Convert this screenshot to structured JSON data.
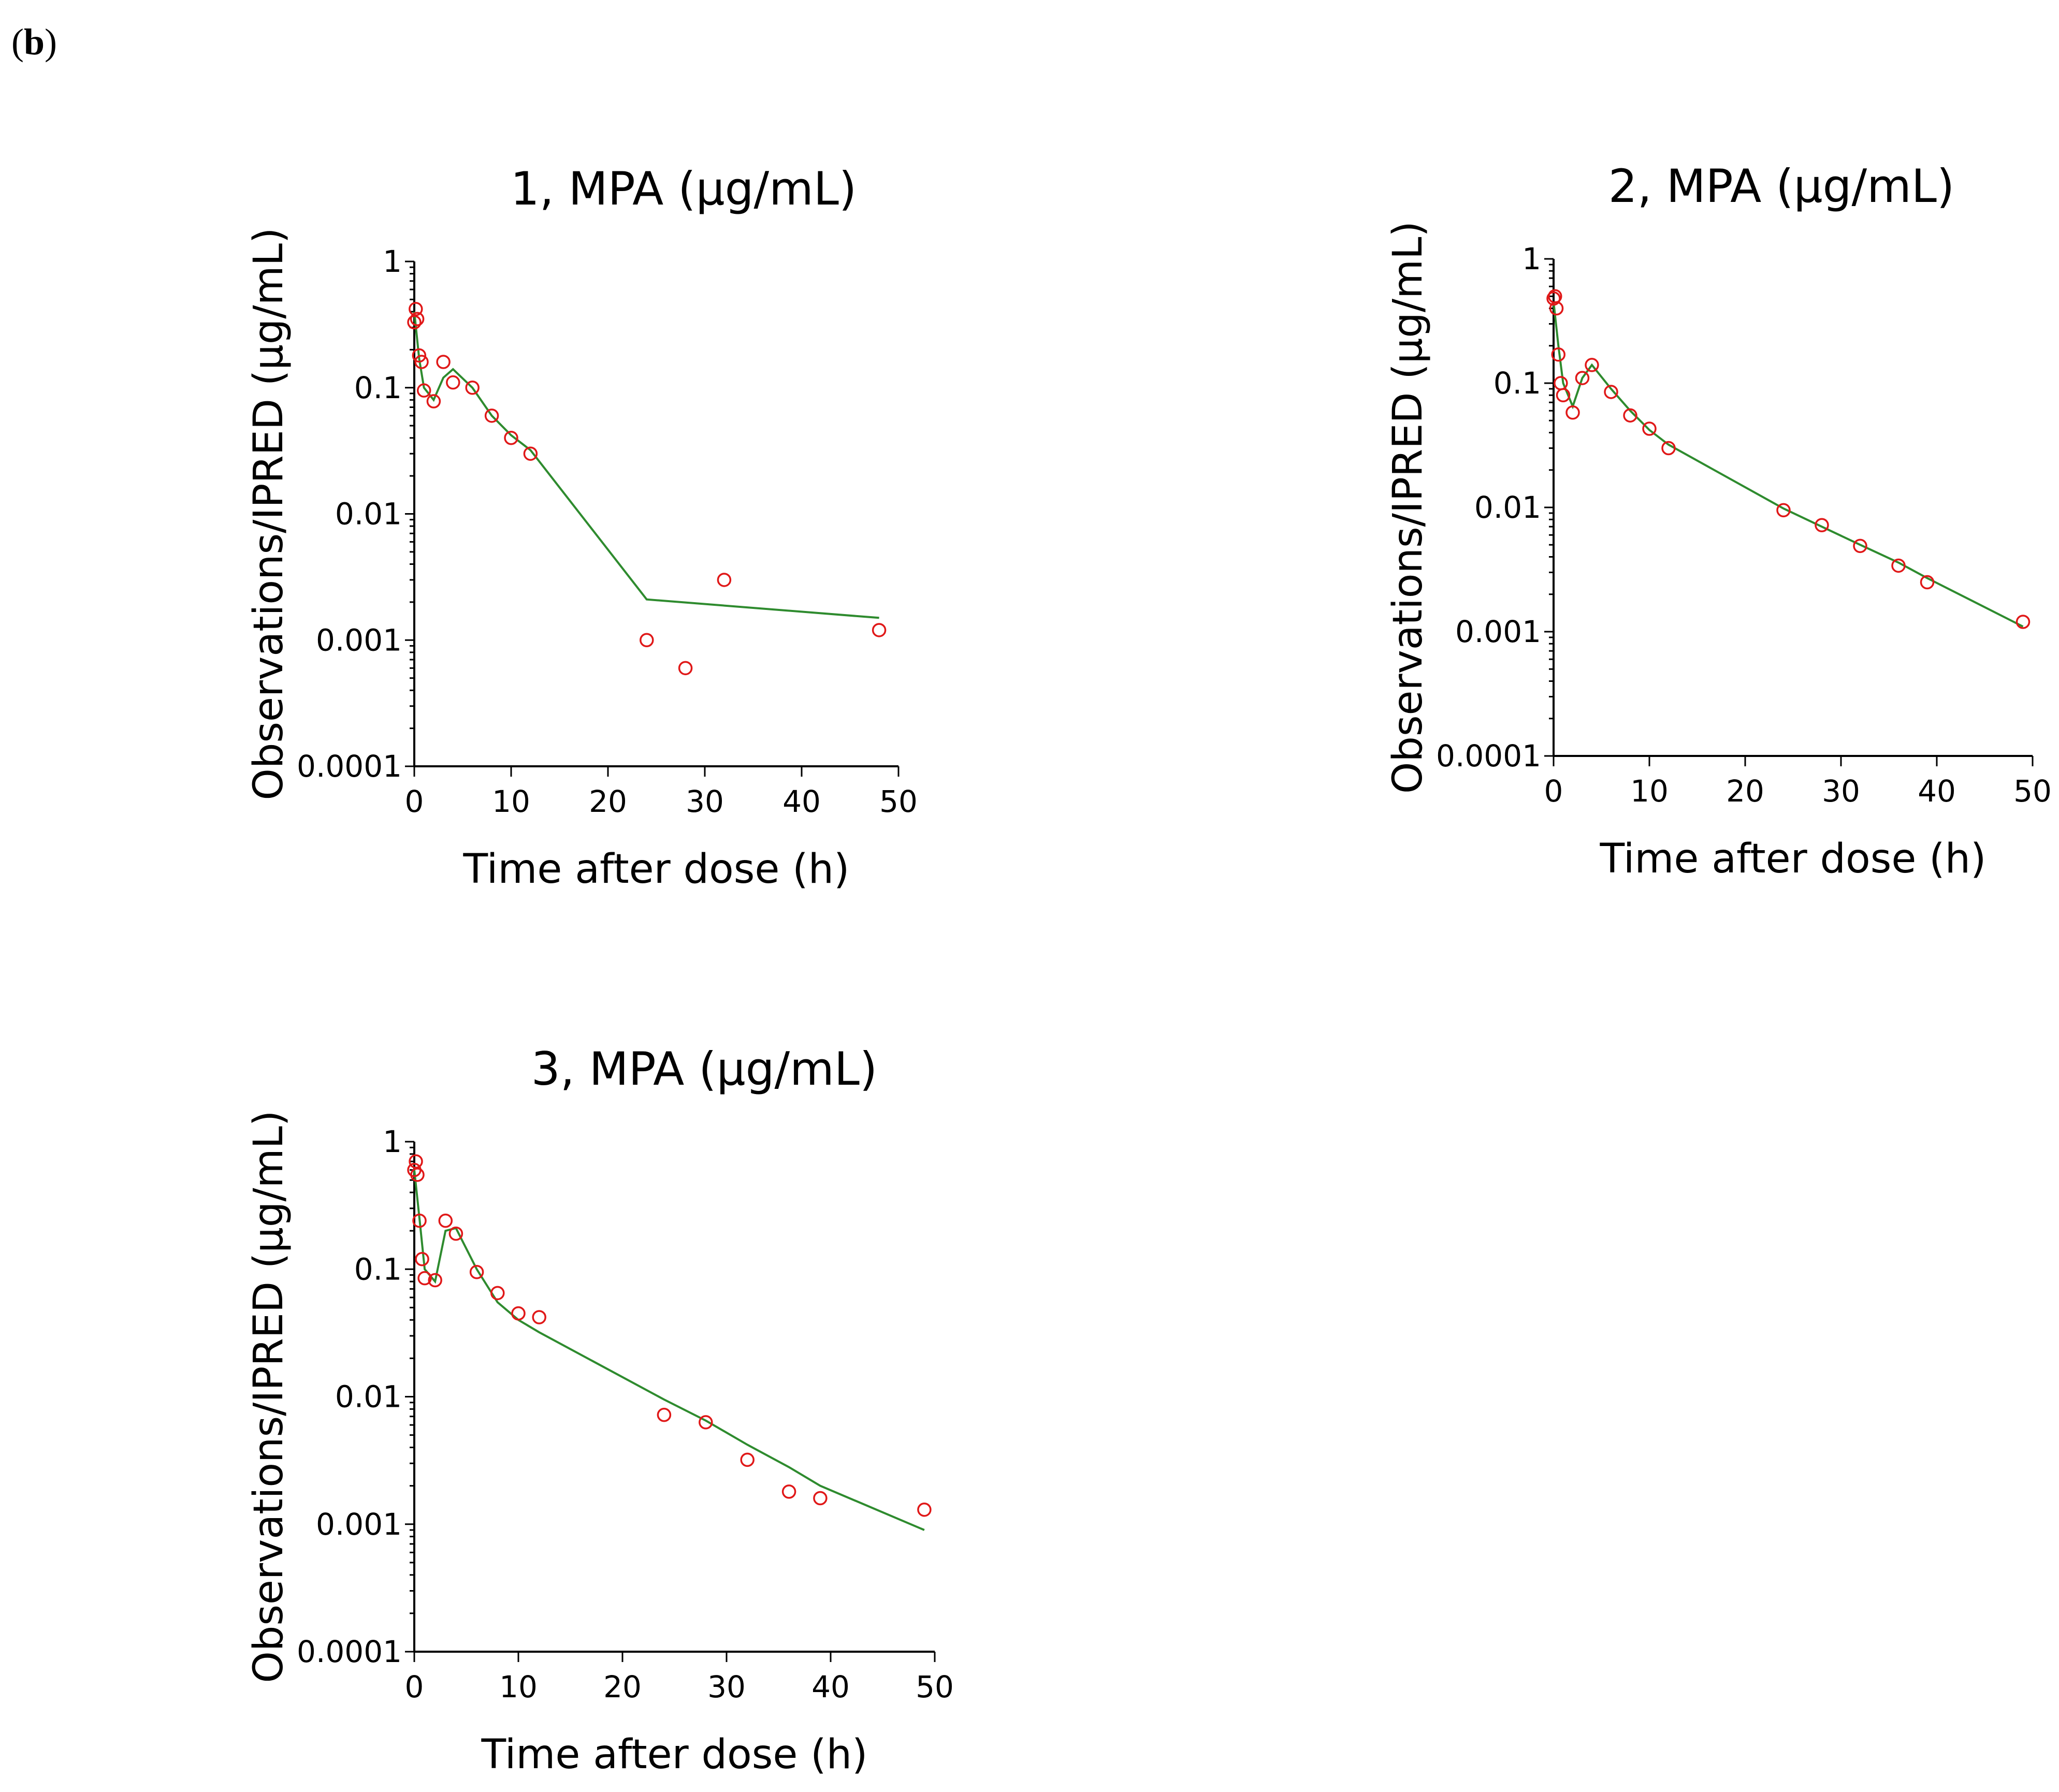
{
  "panel_label": {
    "open": "(",
    "letter": "b",
    "close": ")"
  },
  "colors": {
    "fit_line": "#2e8b2e",
    "observations": "#e01818",
    "axes": "#000000"
  },
  "chart_data": [
    {
      "type": "scatter",
      "title": "1, MPA (µg/mL)",
      "xlabel": "Time after dose (h)",
      "ylabel": "Observations/IPRED (µg/mL)",
      "xlim": [
        0,
        50
      ],
      "ylim": [
        0.0001,
        1
      ],
      "yscale": "log",
      "xticks": [
        0,
        10,
        20,
        30,
        40,
        50
      ],
      "yticks": [
        0.0001,
        0.001,
        0.01,
        0.1,
        1
      ],
      "xtick_labels": [
        "0",
        "10",
        "20",
        "30",
        "40",
        "50"
      ],
      "ytick_labels": [
        "0.0001",
        "0.001",
        "0.01",
        "0.1",
        "1"
      ],
      "series": [
        {
          "name": "IPRED",
          "kind": "line",
          "x": [
            0,
            0.5,
            1,
            2,
            3,
            4,
            6,
            8,
            10,
            12,
            24,
            48
          ],
          "y": [
            0.4,
            0.17,
            0.1,
            0.08,
            0.12,
            0.14,
            0.1,
            0.06,
            0.042,
            0.032,
            0.0021,
            0.0015
          ]
        },
        {
          "name": "Observations",
          "kind": "scatter",
          "x": [
            0,
            0.15,
            0.3,
            0.5,
            0.75,
            1,
            2,
            3,
            4,
            6,
            8,
            10,
            12,
            24,
            28,
            32,
            48
          ],
          "y": [
            0.33,
            0.42,
            0.35,
            0.18,
            0.16,
            0.095,
            0.078,
            0.16,
            0.11,
            0.1,
            0.06,
            0.04,
            0.03,
            0.001,
            0.0006,
            0.003,
            0.0012
          ]
        }
      ]
    },
    {
      "type": "scatter",
      "title": "2, MPA (µg/mL)",
      "xlabel": "Time after dose (h)",
      "ylabel": "Observations/IPRED (µg/mL)",
      "xlim": [
        0,
        50
      ],
      "ylim": [
        0.0001,
        1
      ],
      "yscale": "log",
      "xticks": [
        0,
        10,
        20,
        30,
        40,
        50
      ],
      "yticks": [
        0.0001,
        0.001,
        0.01,
        0.1,
        1
      ],
      "xtick_labels": [
        "0",
        "10",
        "20",
        "30",
        "40",
        "50"
      ],
      "ytick_labels": [
        "0.0001",
        "0.001",
        "0.01",
        "0.1",
        "1"
      ],
      "series": [
        {
          "name": "IPRED",
          "kind": "line",
          "x": [
            0,
            0.5,
            1,
            2,
            3,
            4,
            6,
            8,
            10,
            12,
            24,
            28,
            32,
            36,
            39,
            49
          ],
          "y": [
            0.45,
            0.2,
            0.1,
            0.065,
            0.11,
            0.14,
            0.09,
            0.06,
            0.042,
            0.032,
            0.0098,
            0.007,
            0.005,
            0.0036,
            0.0027,
            0.0011
          ]
        },
        {
          "name": "Observations",
          "kind": "scatter",
          "x": [
            0,
            0.15,
            0.3,
            0.5,
            0.75,
            1,
            2,
            3,
            4,
            6,
            8,
            10,
            12,
            24,
            28,
            32,
            36,
            39,
            49
          ],
          "y": [
            0.48,
            0.5,
            0.4,
            0.17,
            0.1,
            0.08,
            0.058,
            0.11,
            0.14,
            0.085,
            0.055,
            0.043,
            0.03,
            0.0095,
            0.0072,
            0.0049,
            0.0034,
            0.0025,
            0.0012
          ]
        }
      ]
    },
    {
      "type": "scatter",
      "title": "3, MPA (µg/mL)",
      "xlabel": "Time after dose (h)",
      "ylabel": "Observations/IPRED (µg/mL)",
      "xlim": [
        0,
        50
      ],
      "ylim": [
        0.0001,
        1
      ],
      "yscale": "log",
      "xticks": [
        0,
        10,
        20,
        30,
        40,
        50
      ],
      "yticks": [
        0.0001,
        0.001,
        0.01,
        0.1,
        1
      ],
      "xtick_labels": [
        "0",
        "10",
        "20",
        "30",
        "40",
        "50"
      ],
      "ytick_labels": [
        "0.0001",
        "0.001",
        "0.01",
        "0.1",
        "1"
      ],
      "series": [
        {
          "name": "IPRED",
          "kind": "line",
          "x": [
            0,
            0.5,
            1,
            2,
            3,
            4,
            6,
            8,
            10,
            12,
            24,
            28,
            32,
            36,
            39,
            49
          ],
          "y": [
            0.6,
            0.25,
            0.1,
            0.08,
            0.2,
            0.21,
            0.1,
            0.055,
            0.04,
            0.032,
            0.0095,
            0.0065,
            0.0042,
            0.0028,
            0.002,
            0.0009
          ]
        },
        {
          "name": "Observations",
          "kind": "scatter",
          "x": [
            0,
            0.15,
            0.3,
            0.5,
            0.75,
            1,
            2,
            3,
            4,
            6,
            8,
            10,
            12,
            24,
            28,
            32,
            36,
            39,
            49
          ],
          "y": [
            0.6,
            0.7,
            0.55,
            0.24,
            0.12,
            0.085,
            0.082,
            0.24,
            0.19,
            0.095,
            0.065,
            0.045,
            0.042,
            0.0072,
            0.0063,
            0.0032,
            0.0018,
            0.0016,
            0.0013
          ]
        }
      ]
    }
  ]
}
